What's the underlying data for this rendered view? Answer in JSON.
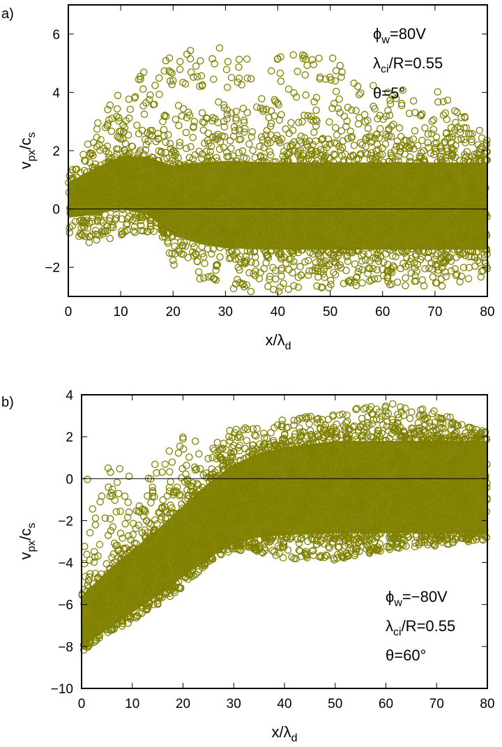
{
  "chart_data": [
    {
      "type": "scatter",
      "panel_label": "a)",
      "xlabel": {
        "main": "x/λ",
        "sub": "d"
      },
      "ylabel": {
        "main": "v",
        "sub": "px",
        "mid": "/c",
        "sub2": "s"
      },
      "xlim": [
        0,
        80
      ],
      "ylim": [
        -3,
        7
      ],
      "xticks": [
        0,
        10,
        20,
        30,
        40,
        50,
        60,
        70,
        80
      ],
      "yticks": [
        -2,
        0,
        2,
        4,
        6
      ],
      "zero_line": true,
      "grid": false,
      "marker": "open-circle",
      "color": "#808000",
      "annotations": [
        {
          "main": "ϕ",
          "sub": "w",
          "rest": "=80V"
        },
        {
          "main": "λ",
          "sub": "ci",
          "rest": "/R=0.55"
        },
        {
          "main": "θ=5°",
          "sub": "",
          "rest": ""
        }
      ],
      "annotation_placement": "top-right",
      "profile": {
        "description_points_x": [
          0,
          5,
          10,
          15,
          18,
          20,
          25,
          30,
          40,
          50,
          60,
          70,
          80
        ],
        "mean": [
          0.3,
          0.6,
          0.9,
          0.8,
          0.5,
          0.3,
          0.2,
          0.15,
          0.1,
          0.1,
          0.1,
          0.1,
          0.1
        ],
        "core_halfwidth": [
          0.6,
          0.8,
          0.9,
          1.0,
          1.1,
          1.2,
          1.4,
          1.5,
          1.5,
          1.5,
          1.5,
          1.5,
          1.5
        ],
        "outlier_max": [
          1.5,
          2.8,
          4.1,
          4.8,
          5.2,
          5.2,
          5.6,
          5.5,
          5.3,
          5.3,
          4.0,
          4.2,
          2.5
        ],
        "outlier_min": [
          -1.0,
          -1.2,
          -0.9,
          -0.8,
          -1.0,
          -1.9,
          -2.4,
          -2.8,
          -2.9,
          -2.7,
          -2.6,
          -2.7,
          -2.3
        ]
      }
    },
    {
      "type": "scatter",
      "panel_label": "b)",
      "xlabel": {
        "main": "x/λ",
        "sub": "d"
      },
      "ylabel": {
        "main": "v",
        "sub": "px",
        "mid": "/c",
        "sub2": "s"
      },
      "xlim": [
        0,
        80
      ],
      "ylim": [
        -10,
        4
      ],
      "xticks": [
        0,
        10,
        20,
        30,
        40,
        50,
        60,
        70,
        80
      ],
      "yticks": [
        -10,
        -8,
        -6,
        -4,
        -2,
        0,
        2,
        4
      ],
      "zero_line": true,
      "grid": false,
      "marker": "open-circle",
      "color": "#808000",
      "annotations": [
        {
          "main": "ϕ",
          "sub": "w",
          "rest": "=−80V"
        },
        {
          "main": "λ",
          "sub": "ci",
          "rest": "/R=0.55"
        },
        {
          "main": "θ=60°",
          "sub": "",
          "rest": ""
        }
      ],
      "annotation_placement": "bottom-right",
      "profile": {
        "description_points_x": [
          0,
          5,
          10,
          15,
          20,
          25,
          30,
          35,
          40,
          50,
          60,
          70,
          80
        ],
        "mean": [
          -6.8,
          -5.8,
          -4.9,
          -4.0,
          -3.0,
          -2.0,
          -1.2,
          -0.8,
          -0.6,
          -0.4,
          -0.4,
          -0.4,
          -0.4
        ],
        "core_halfwidth": [
          1.2,
          1.4,
          1.5,
          1.6,
          1.7,
          1.8,
          1.9,
          2.0,
          2.1,
          2.2,
          2.2,
          2.2,
          2.2
        ],
        "outlier_max": [
          0.8,
          0.6,
          0.6,
          1.0,
          2.0,
          1.7,
          2.4,
          2.6,
          2.9,
          3.1,
          3.7,
          3.2,
          2.2
        ],
        "outlier_min": [
          -8.3,
          -7.4,
          -6.9,
          -6.0,
          -5.2,
          -4.0,
          -3.4,
          -3.5,
          -3.8,
          -3.9,
          -3.4,
          -3.2,
          -2.9
        ]
      }
    }
  ]
}
